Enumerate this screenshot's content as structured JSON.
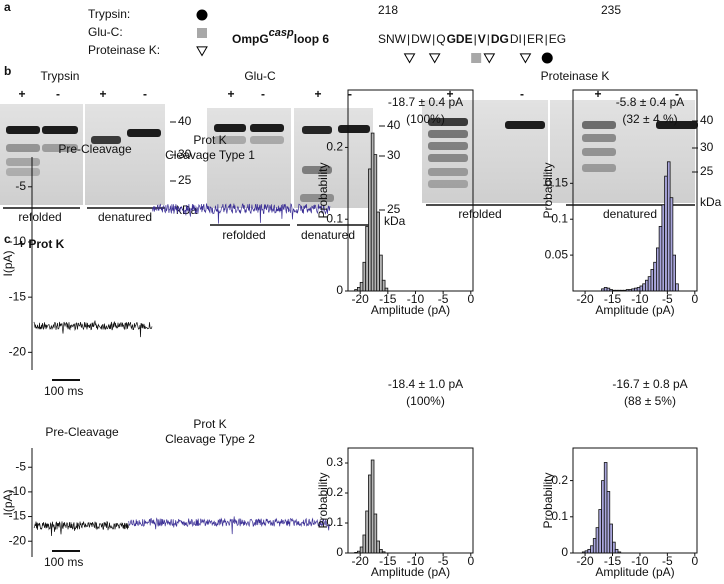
{
  "panel_a": {
    "label": "a",
    "legend": [
      {
        "name": "Trypsin:",
        "marker": "circle"
      },
      {
        "name": "Glu-C:",
        "marker": "square"
      },
      {
        "name": "Proteinase K:",
        "marker": "triangle"
      }
    ],
    "construct": "OmpG",
    "construct_sup": "casp",
    "construct_suffix": "loop 6",
    "start": 218,
    "end": 235,
    "sequence": [
      {
        "text": "SNW"
      },
      {
        "text": "|",
        "marker": "triangle"
      },
      {
        "text": "DW"
      },
      {
        "text": "|",
        "marker": "triangle"
      },
      {
        "text": "Q"
      },
      {
        "text": "GDE",
        "bold": true
      },
      {
        "text": "|",
        "marker": "square"
      },
      {
        "text": "V",
        "bold": true
      },
      {
        "text": "|",
        "marker": "triangle"
      },
      {
        "text": "DG",
        "bold": true
      },
      {
        "text": "DI"
      },
      {
        "text": "|",
        "marker": "triangle"
      },
      {
        "text": "ER"
      },
      {
        "text": "|",
        "marker": "circle"
      },
      {
        "text": "EG"
      }
    ]
  },
  "panel_b": {
    "label": "b",
    "unit": "kDa",
    "gels": [
      {
        "title": "Trypsin",
        "lanes": [
          "+",
          "-",
          "+",
          "-"
        ],
        "markers": [
          40,
          30,
          25
        ],
        "groups": [
          "refolded",
          "denatured"
        ]
      },
      {
        "title": "Glu-C",
        "lanes": [
          "+",
          "-",
          "+",
          "-"
        ],
        "markers": [
          40,
          30,
          25
        ],
        "groups": [
          "refolded",
          "denatured"
        ]
      },
      {
        "title": "Proteinase K",
        "lanes": [
          "+",
          "-",
          "+",
          "-"
        ],
        "markers": [
          40,
          30,
          25
        ],
        "groups": [
          "refolded",
          "denatured"
        ]
      }
    ]
  },
  "panel_c": {
    "label": "c",
    "condition": "+ Prot K",
    "rows": [
      {
        "trace": {
          "ylabel": "I(pA)",
          "ylim": [
            -21.6,
            -2.3
          ],
          "yticks": [
            -20,
            -15,
            -10,
            -5
          ],
          "scalebar": "100 ms",
          "segments": [
            {
              "name": "Pre-Cleavage",
              "level": -17.6,
              "color": "#111111"
            },
            {
              "name": "Prot K",
              "subname": "Cleavage Type 1",
              "level": -7.0,
              "color": "#3b2f95"
            }
          ]
        },
        "histograms": [
          {
            "type": "histogram",
            "title": "-18.7 ± 0.4 pA",
            "subtitle": "(100%)",
            "xlabel": "Amplitude (pA)",
            "ylabel": "Probability",
            "color": "#b4b4b4",
            "xlim": [
              -22.2,
              0.4
            ],
            "xticks": [
              -20,
              -15,
              -10,
              -5,
              0
            ],
            "ylim": [
              0,
              0.28
            ],
            "yticks": [
              0,
              0.1,
              0.2
            ],
            "bins": [
              -21,
              -20.5,
              -20,
              -19.5,
              -19,
              -18.5,
              -18,
              -17.5,
              -17,
              -16.5,
              -16,
              -15.5,
              -15
            ],
            "values": [
              0.002,
              0.005,
              0.012,
              0.04,
              0.09,
              0.17,
              0.22,
              0.19,
              0.11,
              0.05,
              0.015,
              0.004
            ]
          },
          {
            "type": "histogram",
            "title": "-5.8 ± 0.4 pA",
            "subtitle": "(32 ± 4 %)",
            "xlabel": "Amplitude (pA)",
            "ylabel": "Probability",
            "color": "#a9a6dc",
            "xlim": [
              -22.2,
              0.4
            ],
            "xticks": [
              -20,
              -15,
              -10,
              -5,
              0
            ],
            "ylim": [
              0,
              0.28
            ],
            "yticks": [
              0.05,
              0.1,
              0.15
            ],
            "bins": [
              -17,
              -16.5,
              -16,
              -15.5,
              -15,
              -14.5,
              -14,
              -13.5,
              -13,
              -12.5,
              -12,
              -11.5,
              -11,
              -10.5,
              -10,
              -9.5,
              -9,
              -8.5,
              -8,
              -7.5,
              -7,
              -6.5,
              -6,
              -5.5,
              -5,
              -4.5,
              -4,
              -3.5,
              -3
            ],
            "values": [
              0.003,
              0.005,
              0.004,
              0.002,
              0.001,
              0.001,
              0.001,
              0.001,
              0.001,
              0.002,
              0.002,
              0.003,
              0.004,
              0.005,
              0.007,
              0.01,
              0.015,
              0.02,
              0.03,
              0.04,
              0.06,
              0.09,
              0.12,
              0.16,
              0.18,
              0.13,
              0.05,
              0.01
            ]
          }
        ]
      },
      {
        "trace": {
          "ylabel": "I(pA)",
          "ylim": [
            -23.2,
            -1.1
          ],
          "yticks": [
            -20,
            -15,
            -10,
            -5
          ],
          "scalebar": "100 ms",
          "segments": [
            {
              "name": "Pre-Cleavage",
              "level": -16.8,
              "color": "#111111"
            },
            {
              "name": "Prot K",
              "subname": "Cleavage Type 2",
              "level": -16.2,
              "color": "#3b2f95"
            }
          ]
        },
        "histograms": [
          {
            "type": "histogram",
            "title": "-18.4 ± 1.0 pA",
            "subtitle": "(100%)",
            "xlabel": "Amplitude (pA)",
            "ylabel": "Probability",
            "color": "#b4b4b4",
            "xlim": [
              -22.2,
              0.4
            ],
            "xticks": [
              -20,
              -15,
              -10,
              -5,
              0
            ],
            "ylim": [
              0,
              0.35
            ],
            "yticks": [
              0,
              0.1,
              0.2,
              0.3
            ],
            "bins": [
              -21,
              -20.5,
              -20,
              -19.5,
              -19,
              -18.5,
              -18,
              -17.5,
              -17,
              -16.5,
              -16,
              -15.5
            ],
            "values": [
              0.002,
              0.006,
              0.02,
              0.06,
              0.14,
              0.26,
              0.31,
              0.13,
              0.04,
              0.012,
              0.004
            ]
          },
          {
            "type": "histogram",
            "title": "-16.7 ± 0.8 pA",
            "subtitle": "(88 ± 5%)",
            "xlabel": "Amplitude (pA)",
            "ylabel": "Probability",
            "color": "#a9a6dc",
            "xlim": [
              -22.2,
              0.4
            ],
            "xticks": [
              -20,
              -15,
              -10,
              -5,
              0
            ],
            "ylim": [
              0,
              0.29
            ],
            "yticks": [
              0,
              0.1,
              0.2
            ],
            "bins": [
              -20.5,
              -20,
              -19.5,
              -19,
              -18.5,
              -18,
              -17.5,
              -17,
              -16.5,
              -16,
              -15.5,
              -15,
              -14.5,
              -14,
              -13.5
            ],
            "values": [
              0.003,
              0.006,
              0.01,
              0.02,
              0.04,
              0.07,
              0.12,
              0.2,
              0.25,
              0.17,
              0.08,
              0.03,
              0.01,
              0.003
            ]
          }
        ]
      }
    ]
  }
}
